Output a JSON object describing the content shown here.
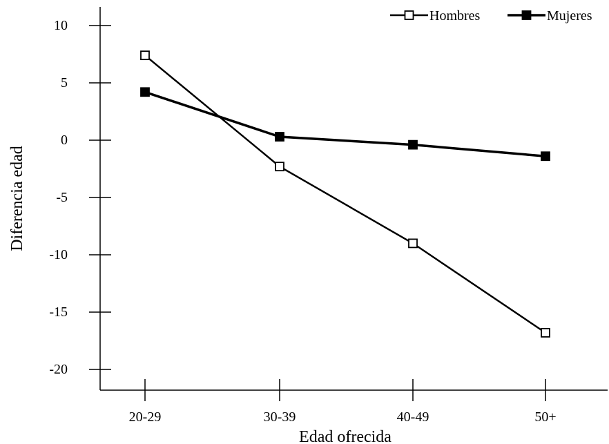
{
  "chart_data": {
    "type": "line",
    "title": "",
    "xlabel": "Edad ofrecida",
    "ylabel": "Diferencia edad",
    "categories": [
      "20-29",
      "30-39",
      "40-49",
      "50+"
    ],
    "ylim": [
      -20,
      10
    ],
    "yticks": [
      "10",
      "5",
      "0",
      "-5",
      "-10",
      "-15",
      "-20"
    ],
    "grid": false,
    "legend_position": "top-right",
    "series": [
      {
        "name": "Hombres",
        "values": [
          7.4,
          -2.3,
          -9.0,
          -16.8
        ],
        "marker": "hollow-square",
        "color": "#000000"
      },
      {
        "name": "Mujeres",
        "values": [
          4.2,
          0.3,
          -0.4,
          -1.4
        ],
        "marker": "filled-square",
        "color": "#000000"
      }
    ]
  }
}
